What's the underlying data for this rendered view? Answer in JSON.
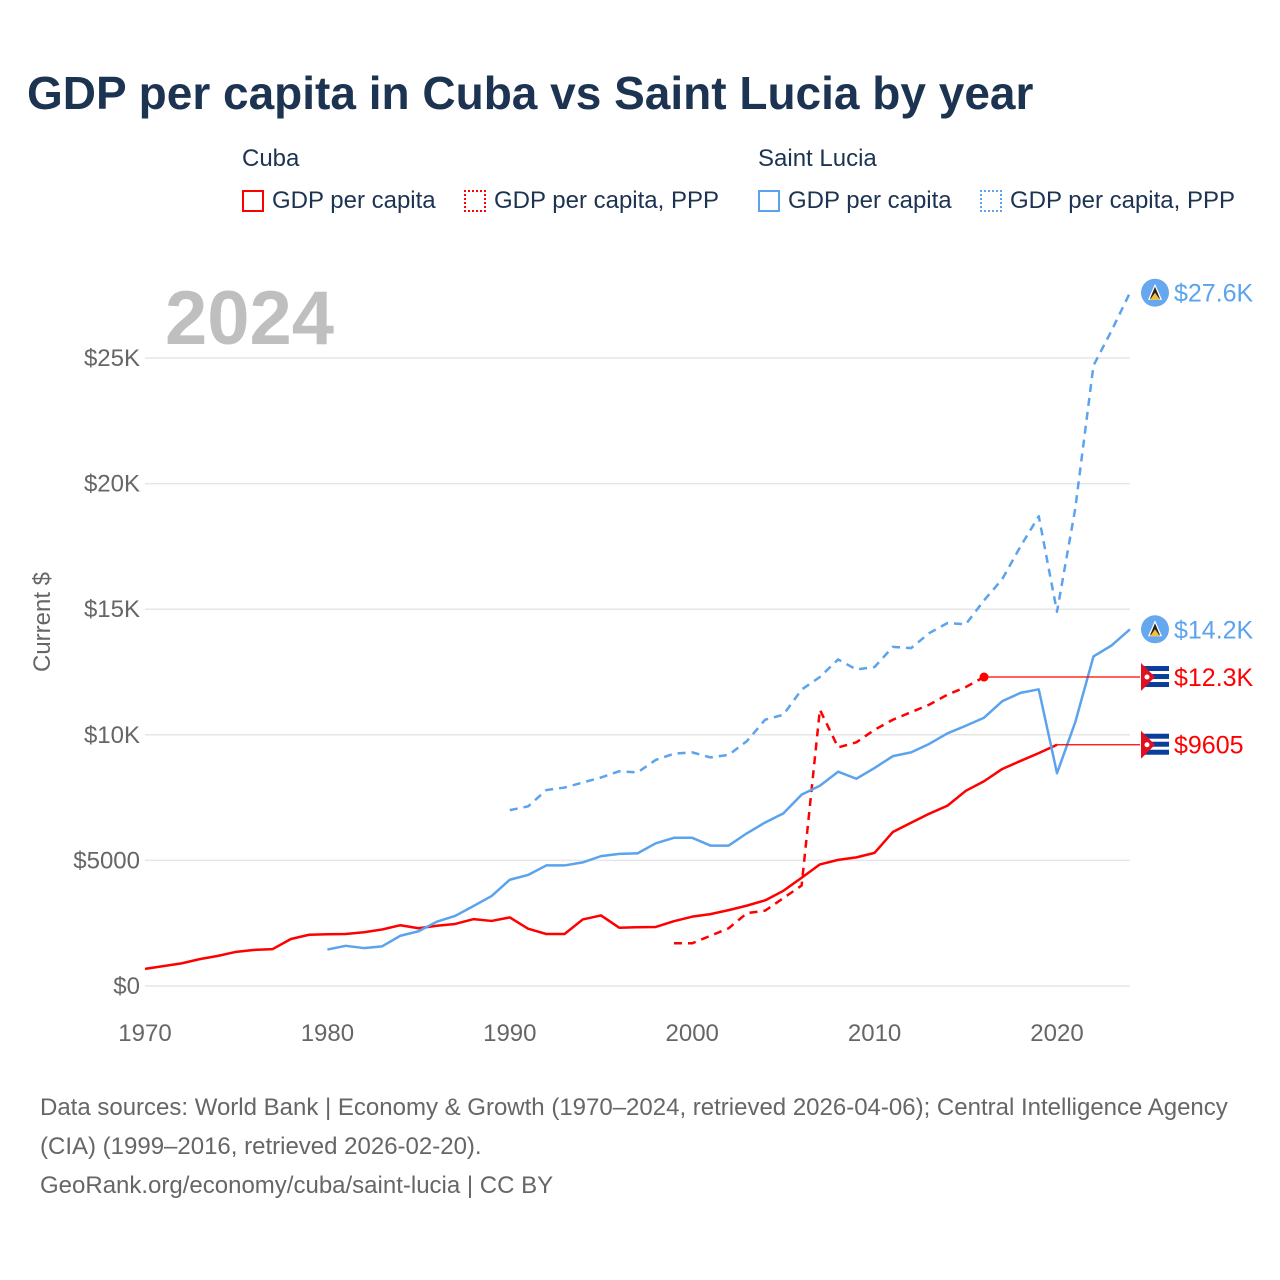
{
  "title": "GDP per capita in Cuba vs Saint Lucia by year",
  "legend": {
    "groups": [
      {
        "name": "Cuba",
        "items": [
          "GDP per capita",
          "GDP per capita, PPP"
        ],
        "color": "#ff0000"
      },
      {
        "name": "Saint Lucia",
        "items": [
          "GDP per capita",
          "GDP per capita, PPP"
        ],
        "color": "#5ba3ec"
      }
    ]
  },
  "year_label": "2024",
  "source_lines": [
    "Data sources: World Bank | Economy & Growth (1970–2024, retrieved 2026-04-06); Central Intelligence Agency (CIA) (1999–2016, retrieved 2026-02-20).",
    "GeoRank.org/economy/cuba/saint-lucia | CC BY"
  ],
  "chart_data": {
    "type": "line",
    "title": "GDP per capita in Cuba vs Saint Lucia by year",
    "xlabel": "",
    "ylabel": "Current $",
    "xlim": [
      1970,
      2024
    ],
    "ylim": [
      0,
      28000
    ],
    "x_ticks": [
      1970,
      1980,
      1990,
      2000,
      2010,
      2020
    ],
    "y_ticks": [
      0,
      5000,
      10000,
      15000,
      20000,
      25000
    ],
    "y_tick_labels": [
      "$0",
      "$5000",
      "$10K",
      "$15K",
      "$20K",
      "$25K"
    ],
    "grid": true,
    "series": [
      {
        "name": "Cuba GDP per capita",
        "color": "#ff0000",
        "dash": false,
        "end_label": "$9605",
        "x": [
          1970,
          1971,
          1972,
          1973,
          1974,
          1975,
          1976,
          1977,
          1978,
          1979,
          1980,
          1981,
          1982,
          1983,
          1984,
          1985,
          1986,
          1987,
          1988,
          1989,
          1990,
          1991,
          1992,
          1993,
          1994,
          1995,
          1996,
          1997,
          1998,
          1999,
          2000,
          2001,
          2002,
          2003,
          2004,
          2005,
          2006,
          2007,
          2008,
          2009,
          2010,
          2011,
          2012,
          2013,
          2014,
          2015,
          2016,
          2017,
          2018,
          2019,
          2020
        ],
        "y": [
          680,
          790,
          900,
          1070,
          1200,
          1360,
          1440,
          1470,
          1870,
          2040,
          2060,
          2070,
          2140,
          2250,
          2420,
          2300,
          2400,
          2470,
          2660,
          2590,
          2730,
          2280,
          2070,
          2070,
          2650,
          2810,
          2320,
          2340,
          2350,
          2580,
          2760,
          2860,
          3020,
          3200,
          3410,
          3790,
          4310,
          4840,
          5020,
          5120,
          5300,
          6130,
          6500,
          6860,
          7180,
          7770,
          8150,
          8640,
          8960,
          9270,
          9605
        ]
      },
      {
        "name": "Cuba GDP per capita, PPP",
        "color": "#ff0000",
        "dash": true,
        "end_label": "$12.3K",
        "x": [
          1999,
          2000,
          2001,
          2002,
          2003,
          2004,
          2005,
          2006,
          2007,
          2008,
          2009,
          2010,
          2011,
          2012,
          2013,
          2014,
          2015,
          2016
        ],
        "y": [
          1700,
          1700,
          2000,
          2300,
          2900,
          3000,
          3500,
          4000,
          11000,
          9500,
          9700,
          10200,
          10600,
          10900,
          11200,
          11600,
          11900,
          12300
        ]
      },
      {
        "name": "Saint Lucia GDP per capita",
        "color": "#5ba3ec",
        "dash": false,
        "end_label": "$14.2K",
        "x": [
          1980,
          1981,
          1982,
          1983,
          1984,
          1985,
          1986,
          1987,
          1988,
          1989,
          1990,
          1991,
          1992,
          1993,
          1994,
          1995,
          1996,
          1997,
          1998,
          1999,
          2000,
          2001,
          2002,
          2003,
          2004,
          2005,
          2006,
          2007,
          2008,
          2009,
          2010,
          2011,
          2012,
          2013,
          2014,
          2015,
          2016,
          2017,
          2018,
          2019,
          2020,
          2021,
          2022,
          2023,
          2024
        ],
        "y": [
          1450,
          1600,
          1510,
          1580,
          2000,
          2180,
          2560,
          2790,
          3180,
          3580,
          4230,
          4420,
          4800,
          4800,
          4920,
          5170,
          5260,
          5280,
          5680,
          5900,
          5900,
          5590,
          5590,
          6080,
          6510,
          6870,
          7620,
          7970,
          8530,
          8250,
          8680,
          9150,
          9300,
          9640,
          10060,
          10360,
          10680,
          11340,
          11670,
          11810,
          8470,
          10500,
          13120,
          13560,
          14200
        ]
      },
      {
        "name": "Saint Lucia GDP per capita, PPP",
        "color": "#5ba3ec",
        "dash": true,
        "end_label": "$27.6K",
        "x": [
          1990,
          1991,
          1992,
          1993,
          1994,
          1995,
          1996,
          1997,
          1998,
          1999,
          2000,
          2001,
          2002,
          2003,
          2004,
          2005,
          2006,
          2007,
          2008,
          2009,
          2010,
          2011,
          2012,
          2013,
          2014,
          2015,
          2016,
          2017,
          2018,
          2019,
          2020,
          2021,
          2022,
          2023,
          2024
        ],
        "y": [
          7000,
          7150,
          7800,
          7900,
          8100,
          8300,
          8550,
          8500,
          9000,
          9250,
          9300,
          9100,
          9200,
          9750,
          10600,
          10800,
          11800,
          12300,
          13000,
          12600,
          12700,
          13500,
          13450,
          14050,
          14450,
          14400,
          15350,
          16200,
          17500,
          18700,
          14900,
          19000,
          24700,
          26100,
          27600
        ]
      }
    ]
  }
}
